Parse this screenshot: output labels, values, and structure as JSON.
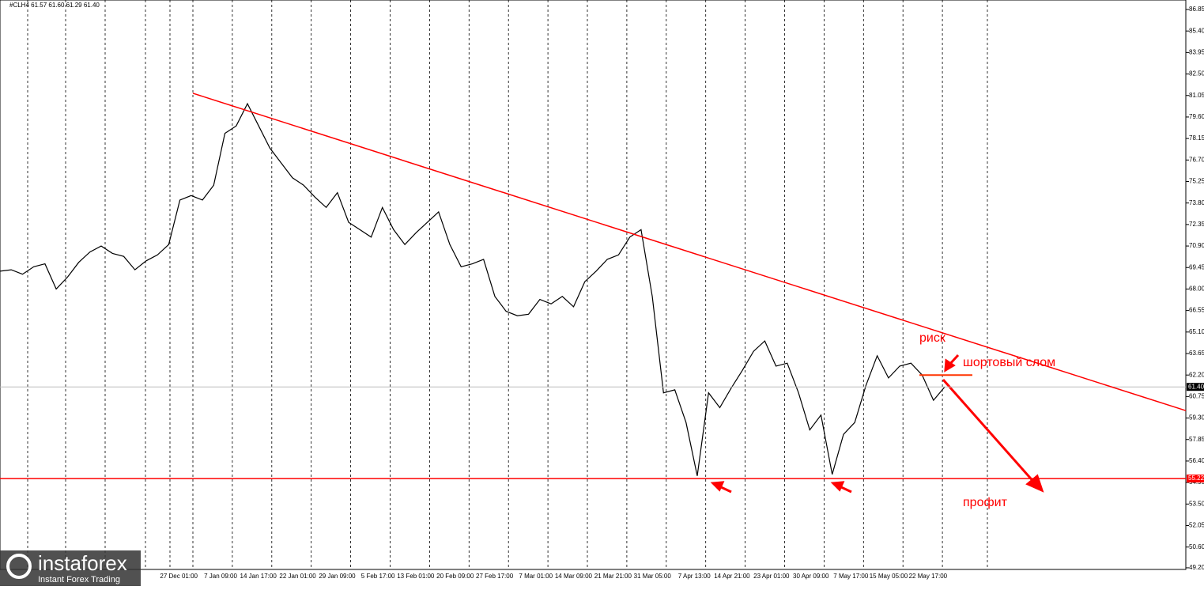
{
  "chart_data": {
    "type": "line",
    "header": "#CLH4  61.57 61.60 61.29 61.40",
    "values": [
      69.2,
      69.3,
      69.0,
      69.5,
      69.7,
      68.0,
      68.8,
      69.8,
      70.5,
      70.9,
      70.4,
      70.2,
      69.3,
      69.9,
      70.3,
      71.0,
      74.0,
      74.3,
      74.0,
      75.0,
      78.5,
      79.0,
      80.5,
      79.0,
      77.5,
      76.5,
      75.5,
      75.0,
      74.2,
      73.5,
      74.5,
      72.5,
      72.0,
      71.5,
      73.5,
      72.0,
      71.0,
      71.8,
      72.5,
      73.2,
      71.0,
      69.5,
      69.7,
      70.0,
      67.5,
      66.5,
      66.2,
      66.3,
      67.3,
      67.0,
      67.5,
      66.8,
      68.5,
      69.2,
      70.0,
      70.3,
      71.5,
      72.0,
      67.5,
      61.0,
      61.2,
      59.0,
      55.4,
      61.0,
      60.0,
      61.3,
      62.5,
      63.8,
      64.5,
      62.8,
      63.0,
      61.0,
      58.5,
      59.5,
      55.5,
      58.2,
      59.0,
      61.5,
      63.5,
      62.0,
      62.8,
      63.0,
      62.2,
      60.5,
      61.4
    ],
    "color": "#000000",
    "ylim": [
      49.09,
      87.49
    ],
    "yticks": [
      86.85,
      {
        "value": 85.4,
        "label": "85.40"
      },
      83.95,
      {
        "value": 82.5,
        "label": "82.50"
      },
      81.05,
      {
        "value": 79.6,
        "label": "79.60"
      },
      78.15,
      {
        "value": 76.7,
        "label": "76.70"
      },
      75.25,
      {
        "value": 73.8,
        "label": "73.80"
      },
      72.35,
      {
        "value": 70.9,
        "label": "70.90"
      },
      69.45,
      {
        "value": 68,
        "label": "68.00"
      },
      66.55,
      {
        "value": 65.1,
        "label": "65.10"
      },
      63.65,
      {
        "value": 62.2,
        "label": "62.20"
      },
      60.75,
      {
        "value": 59.3,
        "label": "59.30"
      },
      57.85,
      {
        "value": 56.4,
        "label": "56.40"
      },
      54.95,
      {
        "value": 53.5,
        "label": "53.50"
      },
      52.05,
      {
        "value": 50.6,
        "label": "50.60"
      },
      {
        "value": 49.2,
        "label": "49.20"
      }
    ],
    "x_labels": [
      "27 Dec 01:00",
      "7 Jan 09:00",
      "14 Jan 17:00",
      "22 Jan 01:00",
      "29 Jan 09:00",
      "5 Feb 17:00",
      "13 Feb 01:00",
      "20 Feb 09:00",
      "27 Feb 17:00",
      "7 Mar 01:00",
      "14 Mar 09:00",
      "21 Mar 21:00",
      "31 Mar 05:00",
      "7 Apr 13:00",
      "14 Apr 21:00",
      "23 Apr 01:00",
      "30 Apr 09:00",
      "7 May 17:00",
      "15 May 05:00",
      "22 May 17:00"
    ],
    "current_price": {
      "value": 61.4,
      "label": "61.40"
    },
    "support_level": 55.22,
    "trendline": {
      "start": 81.2,
      "end": 59.8
    },
    "short_break_level": 62.2,
    "annotations": {
      "risk": "риск",
      "short_break": "шортовый слом",
      "profit": "профит"
    },
    "watermark": {
      "brand": "instaforex",
      "slogan": "Instant Forex Trading"
    }
  }
}
